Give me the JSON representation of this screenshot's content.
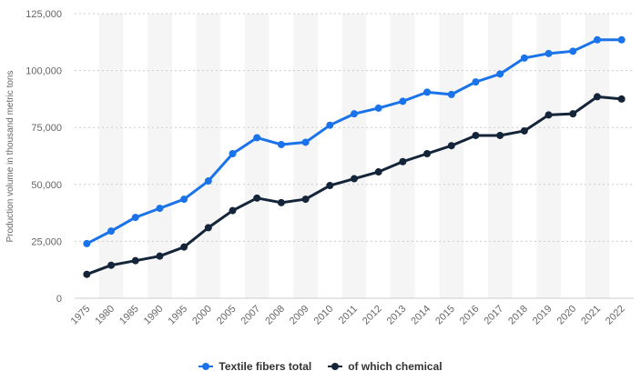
{
  "chart_data": {
    "type": "line",
    "ylabel": "Production volume in thousand metric tons",
    "xlabel": "",
    "categories": [
      "1975",
      "1980",
      "1985",
      "1990",
      "1995",
      "2000",
      "2005",
      "2007",
      "2008",
      "2009",
      "2010",
      "2011",
      "2012",
      "2013",
      "2014",
      "2015",
      "2016",
      "2017",
      "2018",
      "2019",
      "2020",
      "2021",
      "2022"
    ],
    "ylim": [
      0,
      125000
    ],
    "yticks": [
      0,
      25000,
      50000,
      75000,
      100000,
      125000
    ],
    "ytick_labels": [
      "0",
      "25,000",
      "50,000",
      "75,000",
      "100,000",
      "125,000"
    ],
    "grid": true,
    "legend_position": "bottom",
    "series": [
      {
        "name": "Textile fibers total",
        "color": "#1a73e8",
        "values": [
          24000,
          29500,
          35500,
          39500,
          43500,
          51500,
          63500,
          70500,
          67500,
          68500,
          76000,
          81000,
          83500,
          86500,
          90500,
          89500,
          95000,
          98500,
          105500,
          107500,
          108500,
          113500,
          113500
        ]
      },
      {
        "name": "of which chemical",
        "color": "#14253a",
        "values": [
          10500,
          14500,
          16500,
          18500,
          22500,
          31000,
          38500,
          44000,
          42000,
          43500,
          49500,
          52500,
          55500,
          60000,
          63500,
          67000,
          71500,
          71500,
          73500,
          80500,
          81000,
          88500,
          87500
        ]
      }
    ]
  }
}
